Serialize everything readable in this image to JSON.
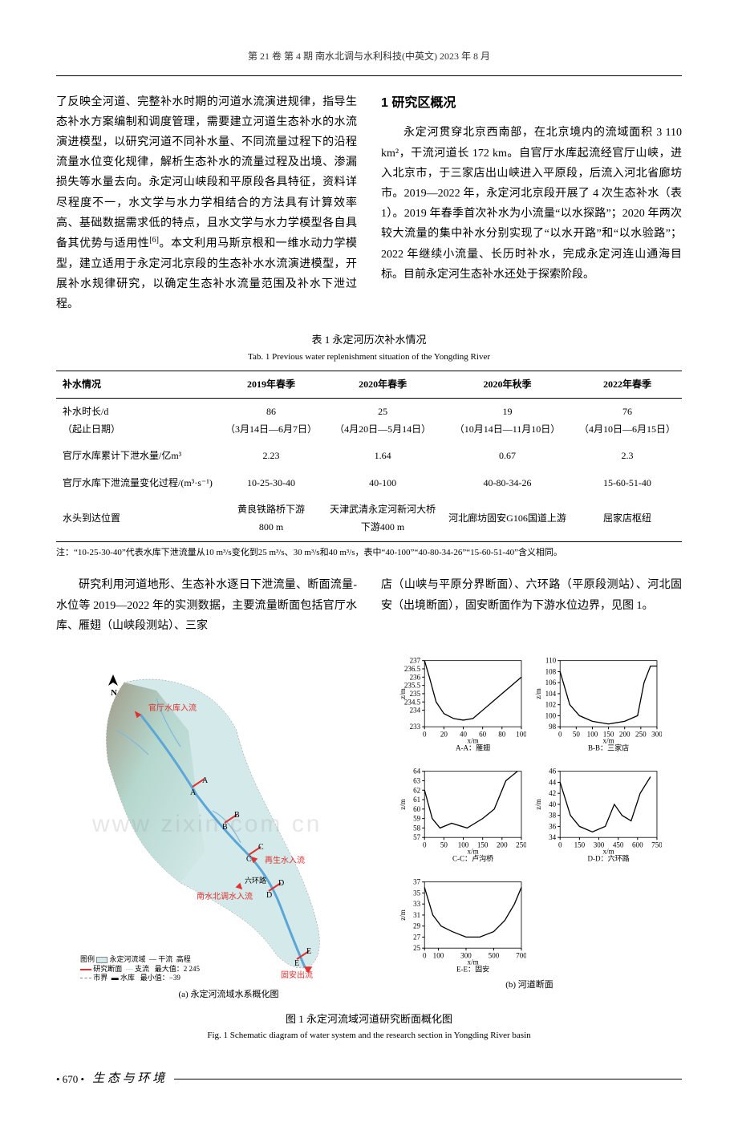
{
  "header": {
    "text": "第 21 卷  第 4 期    南水北调与水利科技(中英文)    2023 年 8 月"
  },
  "left_col": {
    "p1": "了反映全河道、完整补水时期的河道水流演进规律，指导生态补水方案编制和调度管理，需要建立河道生态补水的水流演进模型，以研究河道不同补水量、不同流量过程下的沿程流量水位变化规律，解析生态补水的流量过程及出境、渗漏损失等水量去向。永定河山峡段和平原段各具特征，资料详尽程度不一，水文学与水力学相结合的方法具有计算效率高、基础数据需求低的特点，且水文学与水力学模型各自具备其优势与适用性",
    "p1_sup": "[6]",
    "p1_after": "。本文利用马斯京根和一维水动力学模型，建立适用于永定河北京段的生态补水水流演进模型，开展补水规律研究，以确定生态补水流量范围及补水下泄过程。"
  },
  "right_col": {
    "title": "1  研究区概况",
    "p1": "永定河贯穿北京西南部，在北京境内的流域面积 3 110 km²，干流河道长 172 km。自官厅水库起流经官厅山峡，进入北京市，于三家店出山峡进入平原段，后流入河北省廊坊市。2019—2022 年，永定河北京段开展了 4 次生态补水（表 1）。2019 年春季首次补水为小流量“以水探路”；2020 年两次较大流量的集中补水分别实现了“以水开路”和“以水验路”；2022 年继续小流量、长历时补水，完成永定河连山通海目标。目前永定河生态补水还处于探索阶段。"
  },
  "table1": {
    "caption_cn": "表 1  永定河历次补水情况",
    "caption_en": "Tab. 1  Previous water replenishment situation of the Yongding River",
    "columns": [
      "补水情况",
      "2019年春季",
      "2020年春季",
      "2020年秋季",
      "2022年春季"
    ],
    "rows": [
      [
        "补水时长/d\n（起止日期）",
        "86\n（3月14日—6月7日）",
        "25\n（4月20日—5月14日）",
        "19\n（10月14日—11月10日）",
        "76\n（4月10日—6月15日）"
      ],
      [
        "官厅水库累计下泄水量/亿m³",
        "2.23",
        "1.64",
        "0.67",
        "2.3"
      ],
      [
        "官厅水库下泄流量变化过程/(m³·s⁻¹)",
        "10-25-30-40",
        "40-100",
        "40-80-34-26",
        "15-60-51-40"
      ],
      [
        "水头到达位置",
        "黄良铁路桥下游\n800 m",
        "天津武清永定河新河大桥\n下游400 m",
        "河北廊坊固安G106国道上游",
        "屈家店枢纽"
      ]
    ],
    "note": "注：“10-25-30-40”代表水库下泄流量从10 m³/s变化到25 m³/s、30 m³/s和40 m³/s，表中“40-100”“40-80-34-26”“15-60-51-40”含义相同。"
  },
  "mid_section": {
    "left": "研究利用河道地形、生态补水逐日下泄流量、断面流量-水位等 2019—2022 年的实测数据，主要流量断面包括官厅水库、雁翅（山峡段测站）、三家",
    "right": "店（山峡与平原分界断面）、六环路（平原段测站）、河北固安（出境断面），固安断面作为下游水位边界，见图 1。"
  },
  "figure1": {
    "caption_cn": "图 1  永定河流域河道研究断面概化图",
    "caption_en": "Fig. 1  Schematic diagram of water system and the research section in Yongding River basin",
    "sub_a": "(a) 永定河流域水系概化图",
    "sub_b": "(b) 河道断面",
    "map": {
      "labels": {
        "north": "N",
        "inflow1": "官厅水库入流",
        "pts": [
          "A",
          "A",
          "B",
          "B",
          "C",
          "C",
          "D",
          "D",
          "E",
          "E"
        ],
        "south_water": "南水北调水入流",
        "recycled": "再生水入流",
        "guan_out": "固安出流"
      },
      "legend": {
        "title": "图例",
        "items": [
          "永定河流域",
          "研究断面",
          "市界",
          "干流",
          "支流",
          "水库"
        ],
        "elev_label": "高程",
        "elev_max": "最大值：2 245",
        "elev_min": "最小值：−39"
      },
      "colors": {
        "river": "#5aa6d6",
        "basin_fill": "#d4e9e9",
        "main_red": "#e03030",
        "terrain_low": "#a8cfc2",
        "terrain_high": "#7a6a50"
      }
    },
    "charts": [
      {
        "id": "A",
        "title": "A-A：雁翅",
        "xlabel": "x/m",
        "ylabel": "z/m",
        "xlim": [
          0,
          100
        ],
        "ylim": [
          233,
          237
        ],
        "xticks": [
          0,
          20,
          40,
          60,
          80,
          100
        ],
        "yticks": [
          233,
          234,
          234.5,
          235,
          235.5,
          236,
          236.5,
          237
        ],
        "line_color": "#000",
        "pts": [
          [
            0,
            237
          ],
          [
            5,
            236
          ],
          [
            12,
            234.5
          ],
          [
            20,
            233.8
          ],
          [
            30,
            233.5
          ],
          [
            40,
            233.4
          ],
          [
            50,
            233.5
          ],
          [
            60,
            234
          ],
          [
            70,
            234.5
          ],
          [
            80,
            235
          ],
          [
            90,
            235.5
          ],
          [
            100,
            236
          ]
        ]
      },
      {
        "id": "B",
        "title": "B-B：三家店",
        "xlabel": "x/m",
        "ylabel": "z/m",
        "xlim": [
          0,
          300
        ],
        "ylim": [
          98,
          110
        ],
        "xticks": [
          0,
          50,
          100,
          150,
          200,
          250,
          300
        ],
        "yticks": [
          98,
          100,
          102,
          104,
          106,
          108,
          110
        ],
        "line_color": "#000",
        "pts": [
          [
            0,
            108
          ],
          [
            30,
            102
          ],
          [
            60,
            100
          ],
          [
            100,
            99
          ],
          [
            150,
            98.5
          ],
          [
            200,
            99
          ],
          [
            240,
            100
          ],
          [
            260,
            106
          ],
          [
            280,
            109
          ],
          [
            300,
            109
          ]
        ]
      },
      {
        "id": "C",
        "title": "C-C：卢沟桥",
        "xlabel": "x/m",
        "ylabel": "z/m",
        "xlim": [
          0,
          250
        ],
        "ylim": [
          57,
          64
        ],
        "xticks": [
          0,
          50,
          100,
          150,
          200,
          250
        ],
        "yticks": [
          57,
          58,
          59,
          60,
          61,
          62,
          63,
          64
        ],
        "line_color": "#000",
        "pts": [
          [
            0,
            62
          ],
          [
            20,
            59
          ],
          [
            40,
            58
          ],
          [
            70,
            58.5
          ],
          [
            110,
            58
          ],
          [
            150,
            59
          ],
          [
            180,
            60
          ],
          [
            210,
            63
          ],
          [
            240,
            64
          ]
        ]
      },
      {
        "id": "D",
        "title": "D-D：六环路",
        "xlabel": "x/m",
        "ylabel": "z/m",
        "xlim": [
          0,
          750
        ],
        "ylim": [
          34,
          46
        ],
        "xticks": [
          0,
          150,
          300,
          450,
          600,
          750
        ],
        "yticks": [
          34,
          36,
          38,
          40,
          42,
          44,
          46
        ],
        "line_color": "#000",
        "pts": [
          [
            0,
            44
          ],
          [
            80,
            38
          ],
          [
            150,
            36
          ],
          [
            250,
            35
          ],
          [
            350,
            36
          ],
          [
            420,
            40
          ],
          [
            480,
            38
          ],
          [
            550,
            37
          ],
          [
            620,
            42
          ],
          [
            700,
            45
          ]
        ]
      },
      {
        "id": "E",
        "title": "E-E：固安",
        "xlabel": "x/m",
        "ylabel": "z/m",
        "xlim": [
          0,
          700
        ],
        "ylim": [
          25,
          37
        ],
        "xticks": [
          0,
          100,
          300,
          500,
          700
        ],
        "yticks": [
          25,
          27,
          29,
          31,
          33,
          35,
          37
        ],
        "line_color": "#000",
        "pts": [
          [
            0,
            36
          ],
          [
            60,
            31
          ],
          [
            120,
            29
          ],
          [
            200,
            28
          ],
          [
            300,
            27
          ],
          [
            400,
            27
          ],
          [
            500,
            28
          ],
          [
            580,
            30
          ],
          [
            650,
            33
          ],
          [
            700,
            36
          ]
        ]
      }
    ]
  },
  "footer": {
    "page": "• 670 •",
    "category": "生 态 与 环 境"
  },
  "watermarks": [
    "www",
    "zixin",
    "com",
    "cn"
  ]
}
